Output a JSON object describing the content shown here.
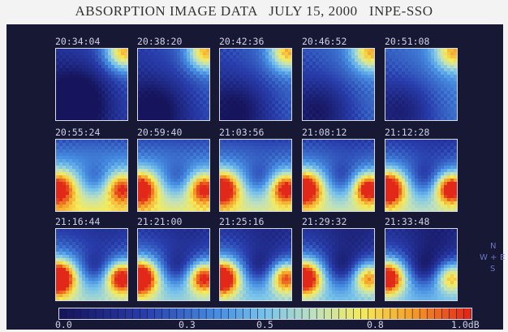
{
  "title": "ABSORPTION IMAGE DATA   JULY 15, 2000   INPE-SSO",
  "compass": {
    "north": "N",
    "west": "W",
    "center": "+",
    "east": "E",
    "south": "S"
  },
  "colorbar": {
    "tick_labels": [
      "0.0",
      "0.3",
      "0.5",
      "0.8",
      "1.0dB"
    ],
    "tick_values": [
      0.0,
      0.3,
      0.5,
      0.8,
      1.0
    ]
  },
  "colors": {
    "background": "#171834",
    "frame": "#d8dbe8",
    "text": "#cfd0e6",
    "compass": "#6c74c6"
  },
  "images": [
    {
      "time": "20:34:04"
    },
    {
      "time": "20:38:20"
    },
    {
      "time": "20:42:36"
    },
    {
      "time": "20:46:52"
    },
    {
      "time": "20:51:08"
    },
    {
      "time": "20:55:24"
    },
    {
      "time": "20:59:40"
    },
    {
      "time": "21:03:56"
    },
    {
      "time": "21:08:12"
    },
    {
      "time": "21:12:28"
    },
    {
      "time": "21:16:44"
    },
    {
      "time": "21:21:00"
    },
    {
      "time": "21:25:16"
    },
    {
      "time": "21:29:32"
    },
    {
      "time": "21:33:48"
    }
  ]
}
